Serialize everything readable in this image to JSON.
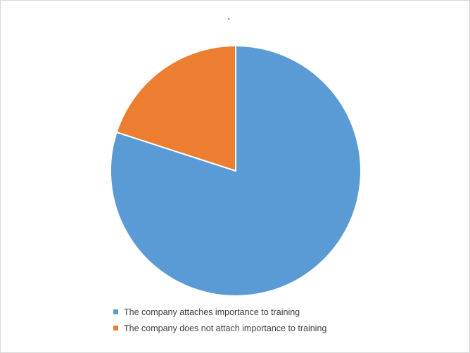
{
  "chart_data": {
    "type": "pie",
    "title": "`",
    "start_angle_deg": 0,
    "direction": "clockwise",
    "legend_position": "bottom",
    "slices": [
      {
        "label": "The company attaches importance to training",
        "value": 80,
        "color": "#5B9BD5"
      },
      {
        "label": "The company does not attach importance to training",
        "value": 20,
        "color": "#ED7D31"
      }
    ]
  }
}
